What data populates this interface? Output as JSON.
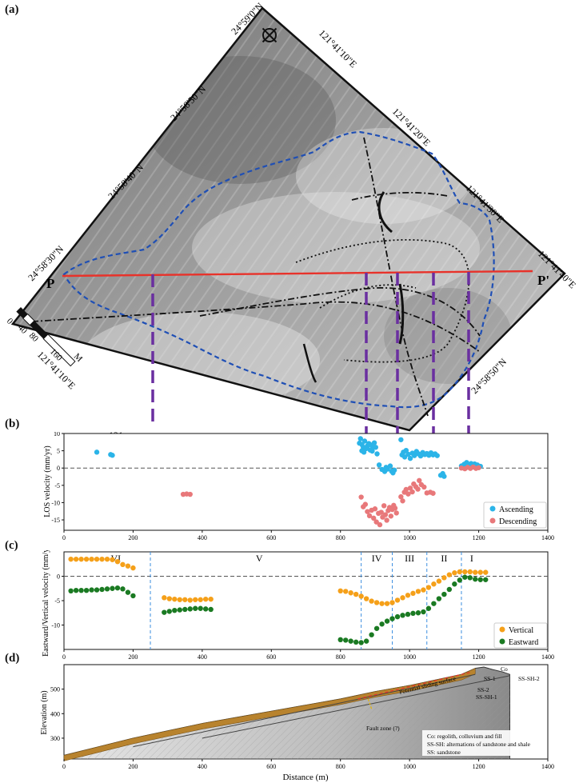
{
  "panel_a": {
    "label": "(a)",
    "coords": {
      "n1": "24°59'0\"N",
      "n2": "24°58'50\"N",
      "n3": "24°58'40\"N",
      "n4": "24°58'30\"N",
      "n5": "24°58'50\"N",
      "e1": "121°41'10\"E",
      "e2": "121°41'20\"E",
      "e3": "121°41'30\"E",
      "e4": "121°41'40\"E",
      "e5": "121°41'10\"E"
    },
    "profile_start": "P",
    "profile_end": "P'",
    "scale_ticks": [
      "0",
      "40",
      "80",
      "160"
    ],
    "scale_unit": "M",
    "clipped_label": "121",
    "colors": {
      "profile": "#e8322a",
      "boundary": "#1f4fb5",
      "divider": "#6a2fa0"
    }
  },
  "chart_data": [
    {
      "id": "b",
      "label": "(b)",
      "type": "scatter",
      "ylabel": "LOS velocity (mm/yr)",
      "xlim": [
        0,
        1400
      ],
      "ylim": [
        -18,
        10
      ],
      "xticks": [
        "0",
        "200",
        "400",
        "600",
        "800",
        "1000",
        "1200",
        "1400"
      ],
      "yticks": [
        "10",
        "5",
        "0",
        "-5",
        "-10",
        "-15"
      ],
      "legend": "bottom-right",
      "series": [
        {
          "name": "Ascending",
          "color": "#2bb4e8",
          "points": [
            [
              95,
              4.6
            ],
            [
              135,
              3.9
            ],
            [
              140,
              3.7
            ],
            [
              855,
              7.2
            ],
            [
              858,
              8.5
            ],
            [
              862,
              6.8
            ],
            [
              866,
              6.0
            ],
            [
              870,
              7.8
            ],
            [
              874,
              5.6
            ],
            [
              878,
              6.4
            ],
            [
              882,
              7.1
            ],
            [
              886,
              5.2
            ],
            [
              890,
              6.6
            ],
            [
              894,
              5.9
            ],
            [
              898,
              7.3
            ],
            [
              902,
              6.0
            ],
            [
              906,
              4.1
            ],
            [
              862,
              5.0
            ],
            [
              868,
              4.6
            ],
            [
              876,
              5.8
            ],
            [
              884,
              6.9
            ],
            [
              892,
              4.9
            ],
            [
              912,
              0.9
            ],
            [
              920,
              -0.4
            ],
            [
              928,
              -1.0
            ],
            [
              936,
              -0.3
            ],
            [
              944,
              0.6
            ],
            [
              952,
              -1.4
            ],
            [
              956,
              -0.6
            ],
            [
              932,
              0.2
            ],
            [
              948,
              -0.9
            ],
            [
              975,
              8.2
            ],
            [
              978,
              3.8
            ],
            [
              982,
              4.6
            ],
            [
              986,
              3.2
            ],
            [
              990,
              5.1
            ],
            [
              996,
              4.0
            ],
            [
              1002,
              2.8
            ],
            [
              1008,
              4.3
            ],
            [
              1014,
              3.6
            ],
            [
              1020,
              4.8
            ],
            [
              1026,
              4.1
            ],
            [
              1032,
              3.5
            ],
            [
              1038,
              4.5
            ],
            [
              1044,
              3.9
            ],
            [
              1050,
              4.2
            ],
            [
              1056,
              3.7
            ],
            [
              1062,
              4.4
            ],
            [
              1068,
              3.8
            ],
            [
              1074,
              4.1
            ],
            [
              1080,
              3.6
            ],
            [
              1090,
              -2.1
            ],
            [
              1096,
              -1.6
            ],
            [
              1100,
              -2.4
            ],
            [
              1150,
              0.6
            ],
            [
              1158,
              1.1
            ],
            [
              1165,
              1.6
            ],
            [
              1172,
              0.9
            ],
            [
              1178,
              1.3
            ],
            [
              1188,
              1.2
            ],
            [
              1196,
              0.9
            ],
            [
              1205,
              0.5
            ]
          ]
        },
        {
          "name": "Descending",
          "color": "#e8787a",
          "points": [
            [
              345,
              -7.6
            ],
            [
              355,
              -7.5
            ],
            [
              365,
              -7.6
            ],
            [
              860,
              -8.4
            ],
            [
              866,
              -11.2
            ],
            [
              872,
              -10.5
            ],
            [
              878,
              -12.6
            ],
            [
              884,
              -13.8
            ],
            [
              890,
              -12.2
            ],
            [
              896,
              -14.5
            ],
            [
              900,
              -11.8
            ],
            [
              904,
              -15.6
            ],
            [
              910,
              -13.1
            ],
            [
              914,
              -16.4
            ],
            [
              918,
              -12.8
            ],
            [
              922,
              -14.2
            ],
            [
              926,
              -10.9
            ],
            [
              930,
              -13.5
            ],
            [
              934,
              -15.1
            ],
            [
              938,
              -12.3
            ],
            [
              942,
              -11.4
            ],
            [
              946,
              -13.9
            ],
            [
              950,
              -12.0
            ],
            [
              954,
              -10.8
            ],
            [
              958,
              -11.6
            ],
            [
              962,
              -13.0
            ],
            [
              975,
              -8.3
            ],
            [
              980,
              -9.5
            ],
            [
              985,
              -7.0
            ],
            [
              990,
              -6.2
            ],
            [
              996,
              -7.5
            ],
            [
              1002,
              -5.8
            ],
            [
              1008,
              -6.9
            ],
            [
              1012,
              -4.6
            ],
            [
              1018,
              -5.4
            ],
            [
              1024,
              -6.1
            ],
            [
              1028,
              -3.6
            ],
            [
              1034,
              -4.8
            ],
            [
              1042,
              -5.5
            ],
            [
              1050,
              -7.2
            ],
            [
              1060,
              -7.0
            ],
            [
              1068,
              -7.3
            ],
            [
              1150,
              0.0
            ],
            [
              1160,
              -0.2
            ],
            [
              1168,
              0.2
            ],
            [
              1176,
              -0.1
            ],
            [
              1184,
              0.3
            ],
            [
              1192,
              -0.1
            ],
            [
              1200,
              0.1
            ]
          ]
        }
      ]
    },
    {
      "id": "c",
      "label": "(c)",
      "type": "scatter",
      "ylabel": "Eastward/Vertical velocity (mm/yr)",
      "xlim": [
        0,
        1400
      ],
      "ylim": [
        -15,
        5
      ],
      "xticks": [
        "0",
        "200",
        "400",
        "600",
        "800",
        "1000",
        "1200",
        "1400"
      ],
      "yticks": [
        "0",
        "-5",
        "-10"
      ],
      "legend": "bottom-right",
      "zones": [
        "VI",
        "V",
        "IV",
        "III",
        "II",
        "I"
      ],
      "zone_lines": [
        250,
        860,
        950,
        1050,
        1150
      ],
      "series": [
        {
          "name": "Vertical",
          "color": "#f5a019",
          "points": [
            [
              20,
              3.5
            ],
            [
              35,
              3.5
            ],
            [
              50,
              3.5
            ],
            [
              65,
              3.5
            ],
            [
              80,
              3.5
            ],
            [
              95,
              3.5
            ],
            [
              110,
              3.5
            ],
            [
              125,
              3.5
            ],
            [
              140,
              3.4
            ],
            [
              155,
              3.0
            ],
            [
              170,
              2.4
            ],
            [
              185,
              2.1
            ],
            [
              200,
              1.7
            ],
            [
              290,
              -4.4
            ],
            [
              305,
              -4.6
            ],
            [
              320,
              -4.7
            ],
            [
              335,
              -4.8
            ],
            [
              350,
              -4.8
            ],
            [
              365,
              -4.9
            ],
            [
              380,
              -4.8
            ],
            [
              395,
              -4.8
            ],
            [
              410,
              -4.7
            ],
            [
              425,
              -4.7
            ],
            [
              800,
              -3.0
            ],
            [
              815,
              -3.1
            ],
            [
              830,
              -3.4
            ],
            [
              845,
              -3.7
            ],
            [
              860,
              -4.1
            ],
            [
              875,
              -4.6
            ],
            [
              890,
              -5.1
            ],
            [
              905,
              -5.4
            ],
            [
              920,
              -5.6
            ],
            [
              935,
              -5.6
            ],
            [
              950,
              -5.4
            ],
            [
              965,
              -4.9
            ],
            [
              980,
              -4.4
            ],
            [
              995,
              -3.9
            ],
            [
              1010,
              -3.5
            ],
            [
              1025,
              -3.1
            ],
            [
              1040,
              -2.8
            ],
            [
              1055,
              -2.3
            ],
            [
              1070,
              -1.6
            ],
            [
              1085,
              -1.0
            ],
            [
              1100,
              -0.3
            ],
            [
              1115,
              0.3
            ],
            [
              1130,
              0.7
            ],
            [
              1145,
              0.9
            ],
            [
              1160,
              0.9
            ],
            [
              1175,
              0.9
            ],
            [
              1190,
              0.8
            ],
            [
              1205,
              0.8
            ],
            [
              1220,
              0.8
            ]
          ]
        },
        {
          "name": "Eastward",
          "color": "#1a7a22",
          "points": [
            [
              20,
              -3.0
            ],
            [
              35,
              -2.9
            ],
            [
              50,
              -2.9
            ],
            [
              65,
              -2.9
            ],
            [
              80,
              -2.8
            ],
            [
              95,
              -2.8
            ],
            [
              110,
              -2.7
            ],
            [
              125,
              -2.6
            ],
            [
              140,
              -2.5
            ],
            [
              155,
              -2.4
            ],
            [
              170,
              -2.6
            ],
            [
              185,
              -3.3
            ],
            [
              200,
              -4.0
            ],
            [
              290,
              -7.4
            ],
            [
              305,
              -7.2
            ],
            [
              320,
              -7.0
            ],
            [
              335,
              -6.9
            ],
            [
              350,
              -6.8
            ],
            [
              365,
              -6.7
            ],
            [
              380,
              -6.6
            ],
            [
              395,
              -6.6
            ],
            [
              410,
              -6.7
            ],
            [
              425,
              -6.8
            ],
            [
              800,
              -13.0
            ],
            [
              815,
              -13.1
            ],
            [
              830,
              -13.3
            ],
            [
              845,
              -13.5
            ],
            [
              860,
              -13.6
            ],
            [
              875,
              -13.3
            ],
            [
              890,
              -12.0
            ],
            [
              905,
              -10.7
            ],
            [
              920,
              -9.8
            ],
            [
              935,
              -9.2
            ],
            [
              950,
              -8.7
            ],
            [
              965,
              -8.3
            ],
            [
              980,
              -8.0
            ],
            [
              995,
              -7.8
            ],
            [
              1010,
              -7.6
            ],
            [
              1025,
              -7.5
            ],
            [
              1040,
              -7.3
            ],
            [
              1055,
              -6.6
            ],
            [
              1070,
              -5.6
            ],
            [
              1085,
              -4.6
            ],
            [
              1100,
              -3.7
            ],
            [
              1115,
              -2.7
            ],
            [
              1130,
              -1.6
            ],
            [
              1145,
              -0.8
            ],
            [
              1160,
              -0.2
            ],
            [
              1175,
              -0.3
            ],
            [
              1190,
              -0.6
            ],
            [
              1205,
              -0.7
            ],
            [
              1220,
              -0.7
            ]
          ]
        }
      ]
    },
    {
      "id": "d",
      "label": "(d)",
      "type": "area",
      "xlabel": "Distance (m)",
      "ylabel": "Elevation (m)",
      "xlim": [
        0,
        1400
      ],
      "ylim": [
        215,
        600
      ],
      "xticks": [
        "0",
        "200",
        "400",
        "600",
        "800",
        "1000",
        "1200",
        "1400"
      ],
      "yticks": [
        "500",
        "400",
        "300"
      ],
      "surface": [
        [
          0,
          230
        ],
        [
          100,
          265
        ],
        [
          200,
          300
        ],
        [
          300,
          330
        ],
        [
          400,
          360
        ],
        [
          500,
          385
        ],
        [
          600,
          410
        ],
        [
          700,
          435
        ],
        [
          800,
          460
        ],
        [
          900,
          490
        ],
        [
          1000,
          515
        ],
        [
          1100,
          545
        ],
        [
          1150,
          560
        ],
        [
          1190,
          585
        ],
        [
          1215,
          590
        ],
        [
          1240,
          580
        ],
        [
          1270,
          570
        ],
        [
          1290,
          560
        ]
      ],
      "annotations": {
        "co": "Co",
        "ss1": "SS-1",
        "ssh2": "SS-SH-2",
        "ss2": "SS-2",
        "ssh1": "SS-SH-1",
        "sliding": "Potential sliding surface",
        "fault": "Fault zone (?)"
      },
      "legend_lines": [
        "Co: regolith, colluvium and fill",
        "SS-SH: alternations of sandstone and shale",
        "SS: sandstone"
      ]
    }
  ]
}
